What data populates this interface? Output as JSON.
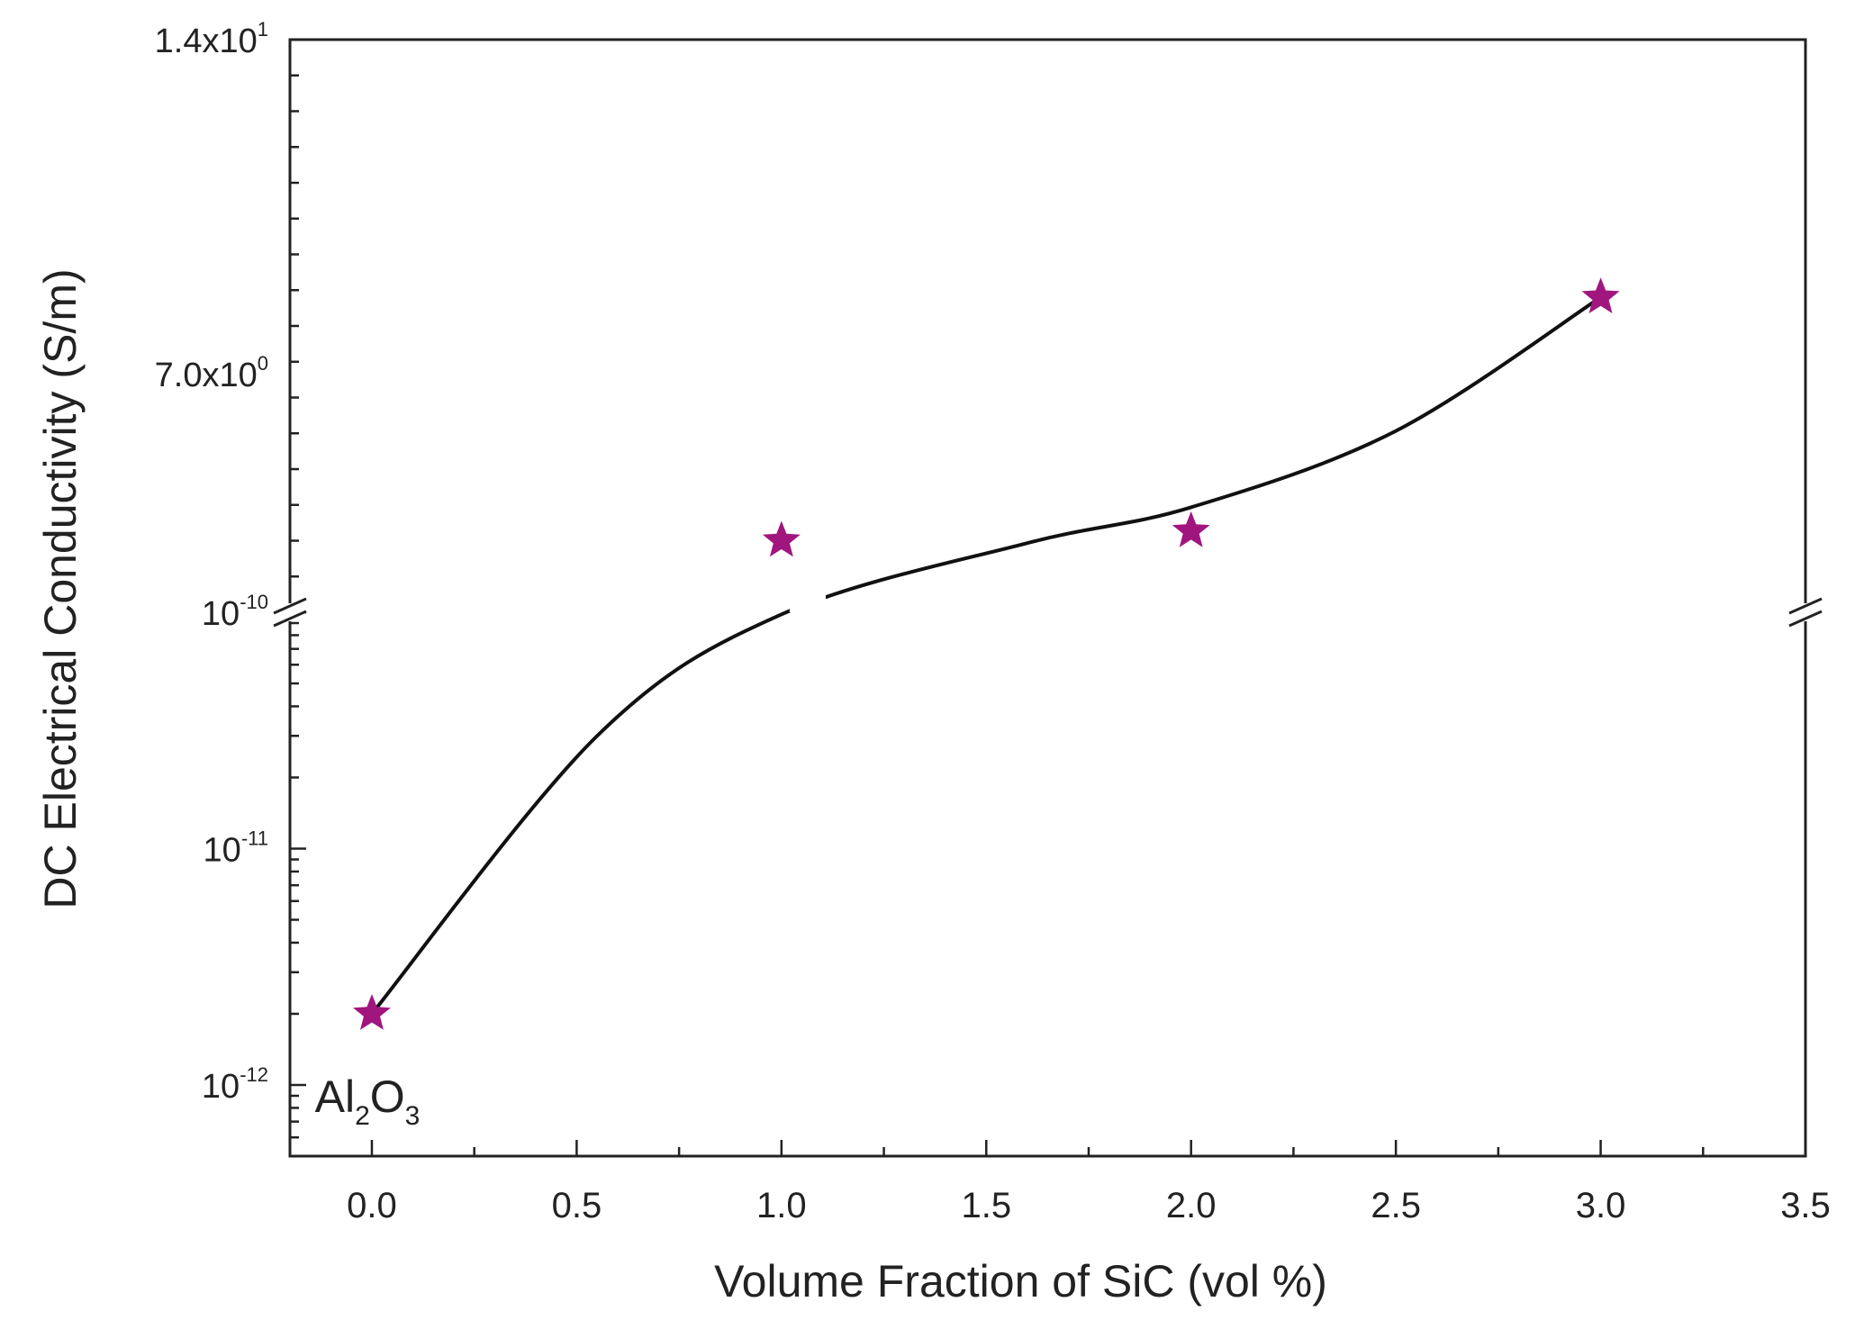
{
  "chart_data": {
    "type": "scatter",
    "xlabel": "Volume Fraction of SiC (vol %)",
    "ylabel": "DC Electrical Conductivity (S/m)",
    "x_ticks": [
      "0.0",
      "0.5",
      "1.0",
      "1.5",
      "2.0",
      "2.5",
      "3.0",
      "3.5"
    ],
    "xlim": [
      -0.2,
      3.5
    ],
    "y_axis_break": true,
    "y_lower_segment": {
      "scale": "log",
      "range": [
        5e-13,
        1e-10
      ],
      "tick_labels": [
        {
          "value": 1e-12,
          "base": "10",
          "exp": "-12"
        },
        {
          "value": 1e-11,
          "base": "10",
          "exp": "-11"
        },
        {
          "value": 1e-10,
          "base": "10",
          "exp": "-10"
        }
      ]
    },
    "y_upper_segment": {
      "scale": "linear",
      "range": [
        2.0,
        14.0
      ],
      "tick_labels": [
        {
          "value": 7.0,
          "base": "7.0x10",
          "exp": "0"
        },
        {
          "value": 14.0,
          "base": "1.4x10",
          "exp": "1"
        }
      ]
    },
    "series": [
      {
        "marker": "star",
        "color": "#a0167e",
        "points": [
          {
            "x": 0.0,
            "y": 2e-12,
            "segment": "lower"
          },
          {
            "x": 1.0,
            "y": 3.5,
            "segment": "upper"
          },
          {
            "x": 2.0,
            "y": 3.7,
            "segment": "upper"
          },
          {
            "x": 3.0,
            "y": 8.6,
            "segment": "upper"
          }
        ]
      }
    ],
    "annotations": [
      {
        "base": "Al",
        "sub1": "2",
        "mid": "O",
        "sub2": "3",
        "x": 0.0
      }
    ],
    "line_color": "#111111",
    "axis_color": "#222222"
  }
}
